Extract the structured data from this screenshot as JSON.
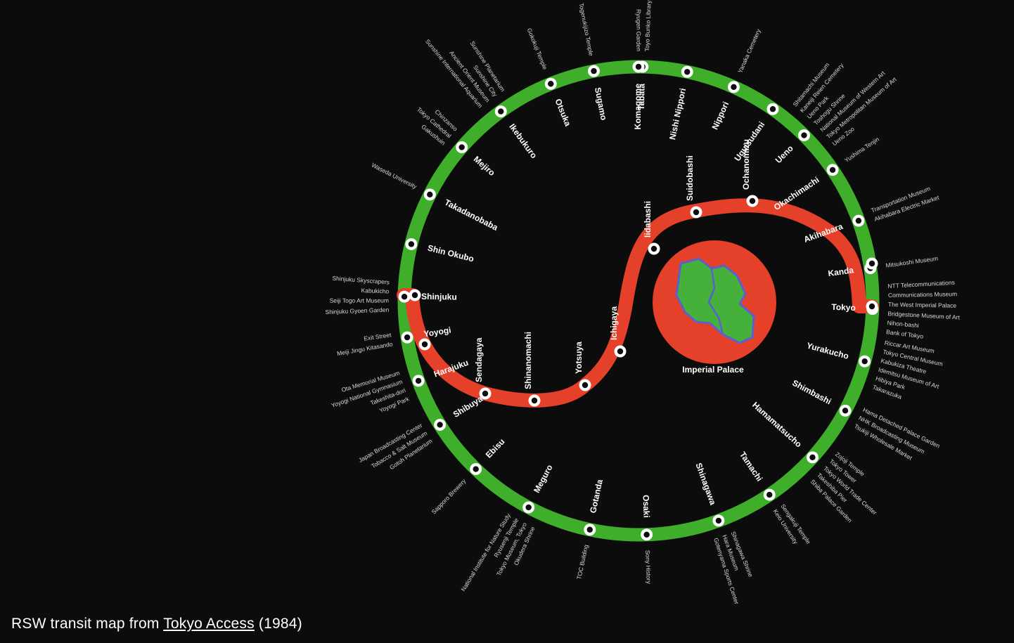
{
  "caption": {
    "prefix": "RSW transit map from",
    "link": "Tokyo Access",
    "suffix": "(1984)"
  },
  "colors": {
    "background": "#0c0c0c",
    "loop_line": "#3fae2a",
    "red_line": "#e5402a",
    "palace_fill": "#e5402a",
    "palace_land": "#45b03a",
    "palace_edge": "#5b5fd0"
  },
  "palace": {
    "label": "Imperial Palace"
  },
  "loop_stations": [
    "Tabata",
    "Nishi Nippori",
    "Nippori",
    "Uguisudani",
    "Ueno",
    "Okachimachi",
    "Akihabara",
    "Kanda",
    "Tokyo",
    "Yurakucho",
    "Shimbashi",
    "Hamamatsucho",
    "Tamachi",
    "Shinagawa",
    "Osaki",
    "Gotanda",
    "Meguro",
    "Ebisu",
    "Shibuya",
    "Harajuku",
    "Yoyogi",
    "Shinjuku",
    "Shin Okubo",
    "Takadanobaba",
    "Mejiro",
    "Ikebukuro",
    "Otsuka",
    "Sugamo",
    "Komagome"
  ],
  "red_stations": [
    "Iidabashi",
    "Suidobashi",
    "Ochanomizu",
    "Ichigaya",
    "Yotsuya",
    "Shinanomachi",
    "Sendagaya"
  ],
  "poi_groups": [
    {
      "near": "Tabata",
      "lines": [
        "Ryugen Garden",
        "Toyo Bunko Library"
      ]
    },
    {
      "near": "Nippori",
      "lines": [
        "Yanaka Cemetery"
      ]
    },
    {
      "near": "Ueno",
      "lines": [
        "Shitamachi Museum",
        "Kaneiji Reien Cemetery",
        "Ueno Park",
        "Toshogu Shrine",
        "National Museum of Western Art",
        "Tokyo Metropolitan Museum of Art",
        "Ueno Zoo"
      ]
    },
    {
      "near": "Okachimachi",
      "lines": [
        "Yushima Tenjin"
      ]
    },
    {
      "near": "Akihabara",
      "lines": [
        "Transportation Museum",
        "Akihabara Electric Market"
      ]
    },
    {
      "near": "Kanda",
      "lines": [
        "Mitsukoshi Museum"
      ]
    },
    {
      "near": "Tokyo",
      "lines": [
        "NTT Telecommunications",
        "Communications Museum",
        "The West Imperial Palace",
        "Bridgestone Museum of Art",
        "Nihon-bashi",
        "Bank of Tokyo"
      ]
    },
    {
      "near": "Yurakucho",
      "lines": [
        "Riccar Art Museum",
        "Tokyo Central Museum",
        "Kabukiza Theatre",
        "Idemitsu Museum of Art",
        "Hibiya Park",
        "Takarazuka"
      ]
    },
    {
      "near": "Shimbashi",
      "lines": [
        "Hama Detached Palace Garden",
        "NHK Broadcasting Museum",
        "Tsukiji Wholesale Market"
      ]
    },
    {
      "near": "Hamamatsucho",
      "lines": [
        "Zojoji Temple",
        "Tokyo Tower",
        "Tokyo World Trade Center",
        "Takeshiba Pier",
        "Shiba Palace Garden"
      ]
    },
    {
      "near": "Tamachi",
      "lines": [
        "Sengakuji Temple",
        "Keio University"
      ]
    },
    {
      "near": "Shinagawa",
      "lines": [
        "Shinagawa Shrine",
        "Hara Museum",
        "Gotenyama Sports Center"
      ]
    },
    {
      "near": "Osaki",
      "lines": [
        "Sony History"
      ]
    },
    {
      "near": "Gotanda",
      "lines": [
        "TOC Building"
      ]
    },
    {
      "near": "Meguro",
      "lines": [
        "Okudera Shrine",
        "Tokyo Museum, Tokyo",
        "Ryusenji Temple",
        "National Institute for Nature Study"
      ]
    },
    {
      "near": "Ebisu",
      "lines": [
        "Sapporo Brewery"
      ]
    },
    {
      "near": "Shibuya",
      "lines": [
        "Gotoh Planetarium",
        "Tobacco & Salt Museum",
        "Japan Broadcasting Center"
      ]
    },
    {
      "near": "Harajuku",
      "lines": [
        "Yoyogi Park",
        "Takeshita-dori",
        "Yoyogi National Gymnasium",
        "Ota Memorial Museum"
      ]
    },
    {
      "near": "Yoyogi",
      "lines": [
        "Meiji Jingu Kitasando",
        "Exit Street"
      ]
    },
    {
      "near": "Shinjuku",
      "lines": [
        "Shinjuku Gyoen Garden",
        "Seiji Togo Art Museum",
        "Kabukicho",
        "Shinjuku Skyscrapers"
      ]
    },
    {
      "near": "Takadanobaba",
      "lines": [
        "Waseda University"
      ]
    },
    {
      "near": "Mejiro",
      "lines": [
        "Gakushuin",
        "Tokyo Cathedral",
        "Chinzanso"
      ]
    },
    {
      "near": "Ikebukuro",
      "lines": [
        "Sunshine International Aquarium",
        "Ancient Orient Museum",
        "Sunshine City",
        "Sunshine Planetarium"
      ]
    },
    {
      "near": "Otsuka",
      "lines": [
        "Gokokuji Temple"
      ]
    },
    {
      "near": "Sugamo",
      "lines": [
        "Togenukijizo Temple"
      ]
    }
  ]
}
